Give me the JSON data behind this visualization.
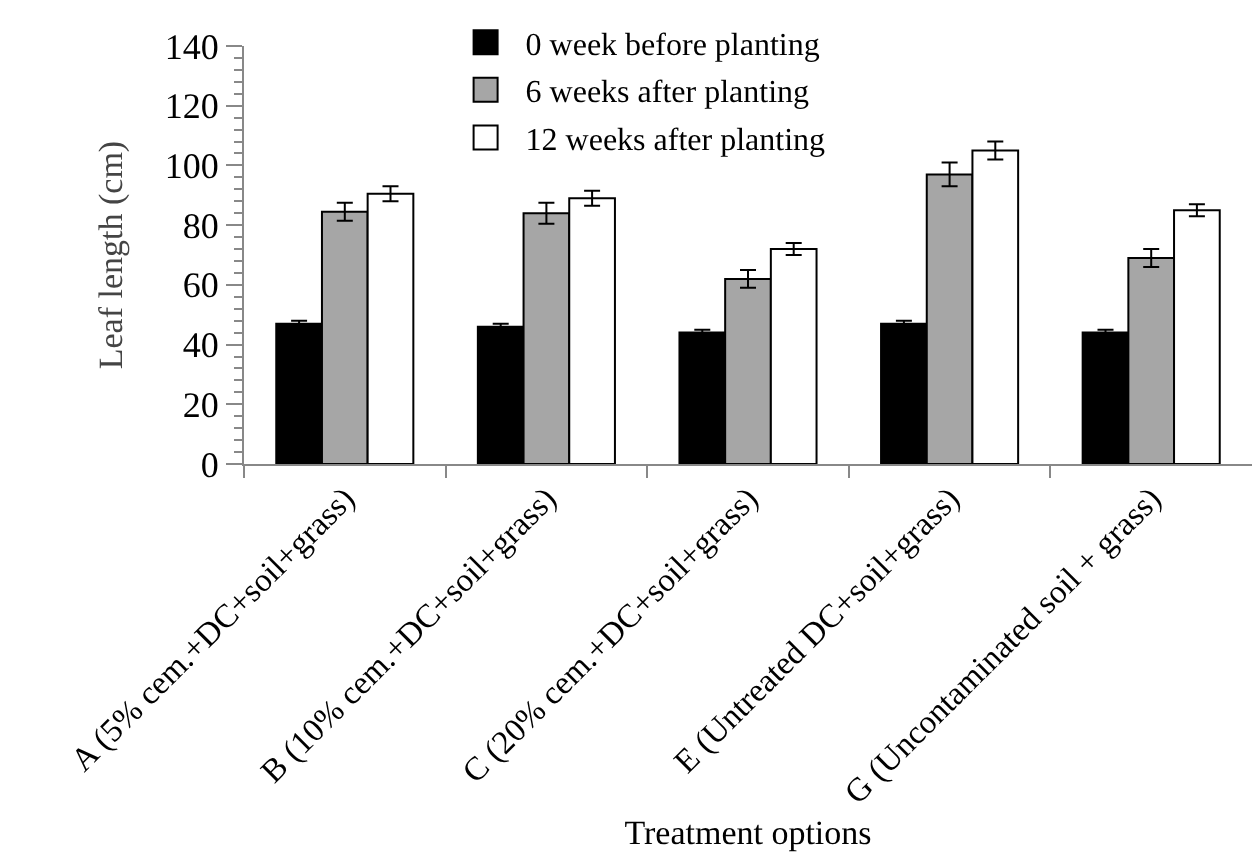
{
  "chart_data": {
    "type": "bar",
    "categories": [
      "A (5% cem.+DC+soil+grass)",
      "B (10% cem.+DC+soil+grass)",
      "C (20% cem.+DC+soil+grass)",
      "E (Untreated DC+soil+grass)",
      "G (Uncontaminated soil + grass)"
    ],
    "xlabel": "Treatment options",
    "ylabel": "Leaf length (cm)",
    "series": [
      {
        "name": "0 week before planting",
        "color": "#000000",
        "values": [
          47,
          46,
          44,
          47,
          44
        ],
        "errors": [
          1,
          1,
          1,
          1,
          1
        ]
      },
      {
        "name": "6 weeks after planting",
        "color": "#a6a6a6",
        "values": [
          84.5,
          84,
          62,
          97,
          69
        ],
        "errors": [
          3,
          3.5,
          3,
          4,
          3
        ]
      },
      {
        "name": "12 weeks after planting",
        "color": "#ffffff",
        "values": [
          90.5,
          89,
          72,
          105,
          85
        ],
        "errors": [
          2.5,
          2.5,
          2,
          3,
          2
        ]
      }
    ],
    "ylim": [
      0,
      140
    ],
    "yticks": [
      0,
      {
        "value": 4,
        "label": null
      },
      {
        "value": 8,
        "label": null
      },
      {
        "value": 12,
        "label": null
      },
      {
        "value": 16,
        "label": null
      },
      20,
      {
        "value": 24,
        "label": null
      },
      {
        "value": 28,
        "label": null
      },
      {
        "value": 32,
        "label": null
      },
      {
        "value": 36,
        "label": null
      },
      40,
      {
        "value": 44,
        "label": null
      },
      {
        "value": 48,
        "label": null
      },
      {
        "value": 52,
        "label": null
      },
      {
        "value": 56,
        "label": null
      },
      60,
      {
        "value": 64,
        "label": null
      },
      {
        "value": 68,
        "label": null
      },
      {
        "value": 72,
        "label": null
      },
      {
        "value": 76,
        "label": null
      },
      80,
      {
        "value": 84,
        "label": null
      },
      {
        "value": 88,
        "label": null
      },
      {
        "value": 92,
        "label": null
      },
      {
        "value": 96,
        "label": null
      },
      100,
      {
        "value": 104,
        "label": null
      },
      {
        "value": 108,
        "label": null
      },
      {
        "value": 112,
        "label": null
      },
      {
        "value": 116,
        "label": null
      },
      120,
      {
        "value": 124,
        "label": null
      },
      {
        "value": 128,
        "label": null
      },
      {
        "value": 132,
        "label": null
      },
      {
        "value": 136,
        "label": null
      },
      140
    ],
    "grid": false,
    "legend": "top"
  }
}
